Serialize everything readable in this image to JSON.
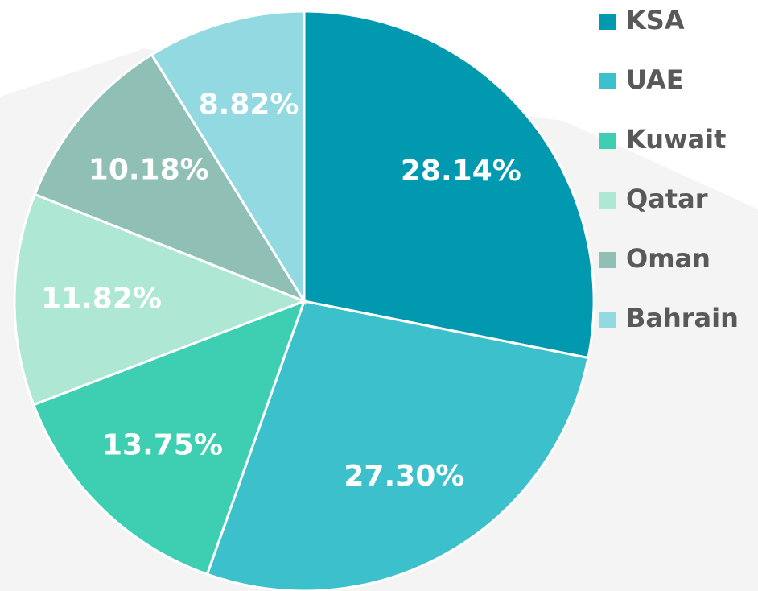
{
  "chart_data": {
    "type": "pie",
    "categories": [
      "KSA",
      "UAE",
      "Kuwait",
      "Qatar",
      "Oman",
      "Bahrain"
    ],
    "values": [
      28.14,
      27.3,
      13.75,
      11.82,
      10.18,
      8.82
    ],
    "value_labels": [
      "28.14%",
      "27.30%",
      "13.75%",
      "11.82%",
      "10.18%",
      "8.82%"
    ],
    "colors": [
      "#0099b0",
      "#3cc0cc",
      "#3ecfb2",
      "#aee8d4",
      "#8fbfb5",
      "#93d9e2"
    ],
    "legend": "right"
  }
}
